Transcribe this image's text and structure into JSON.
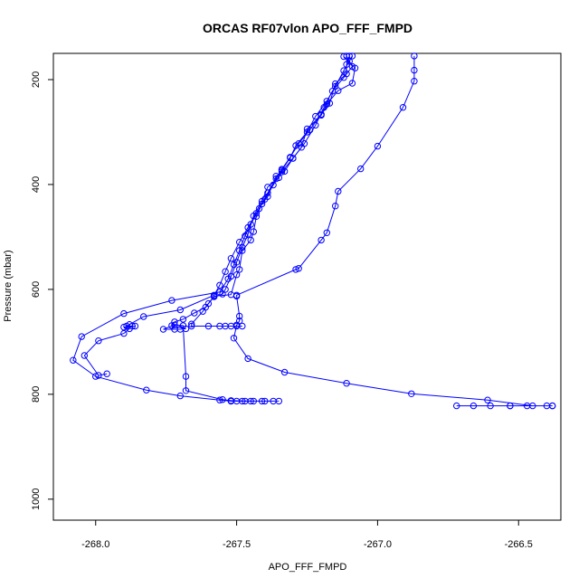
{
  "chart_data": {
    "type": "line",
    "title": "ORCAS RF07vlon APO_FFF_FMPD",
    "xlabel": "APO_FFF_FMPD",
    "ylabel": "Pressure (mbar)",
    "xlim": [
      -268.15,
      -266.35
    ],
    "ylim": [
      1040,
      150
    ],
    "y_reversed": true,
    "grid": false,
    "x_ticks": [
      -268.0,
      -267.5,
      -267.0,
      -266.5
    ],
    "x_tick_labels": [
      "-268.0",
      "-267.5",
      "-267.0",
      "-266.5"
    ],
    "y_ticks": [
      200,
      400,
      600,
      800,
      1000
    ],
    "y_tick_labels": [
      "200",
      "400",
      "600",
      "800",
      "1000"
    ],
    "series_color": "#0000ff",
    "marker": "open-circle",
    "series": [
      {
        "points": [
          [
            -266.87,
            155
          ],
          [
            -266.87,
            182
          ],
          [
            -266.87,
            203
          ],
          [
            -266.91,
            253
          ],
          [
            -267.0,
            327
          ],
          [
            -267.06,
            370
          ],
          [
            -267.14,
            413
          ],
          [
            -267.15,
            441
          ],
          [
            -267.18,
            492
          ],
          [
            -267.2,
            506
          ],
          [
            -267.28,
            560
          ],
          [
            -267.29,
            562
          ],
          [
            -267.5,
            611
          ],
          [
            -267.5,
            613
          ],
          [
            -267.49,
            651
          ],
          [
            -267.49,
            660
          ],
          [
            -267.5,
            668
          ],
          [
            -267.51,
            693
          ],
          [
            -267.46,
            732
          ],
          [
            -267.33,
            758
          ],
          [
            -267.11,
            779
          ],
          [
            -266.88,
            799
          ],
          [
            -266.61,
            811
          ],
          [
            -266.45,
            822
          ],
          [
            -266.38,
            822
          ],
          [
            -266.4,
            822
          ],
          [
            -266.47,
            822
          ],
          [
            -266.53,
            822
          ],
          [
            -266.6,
            822
          ],
          [
            -266.66,
            822
          ],
          [
            -266.72,
            822
          ],
          [
            -266.53,
            822
          ],
          [
            -266.38,
            822
          ]
        ]
      },
      {
        "points": [
          [
            -267.12,
            156
          ],
          [
            -267.08,
            178
          ],
          [
            -267.09,
            207
          ],
          [
            -267.14,
            221
          ],
          [
            -267.18,
            247
          ],
          [
            -267.2,
            268
          ],
          [
            -267.25,
            294
          ],
          [
            -267.27,
            329
          ],
          [
            -267.3,
            350
          ],
          [
            -267.33,
            375
          ],
          [
            -267.36,
            384
          ],
          [
            -267.39,
            423
          ],
          [
            -267.41,
            437
          ],
          [
            -267.43,
            461
          ],
          [
            -267.44,
            490
          ],
          [
            -267.45,
            506
          ],
          [
            -267.48,
            526
          ],
          [
            -267.49,
            562
          ],
          [
            -267.5,
            572
          ],
          [
            -267.52,
            610
          ],
          [
            -267.58,
            613
          ],
          [
            -267.61,
            634
          ],
          [
            -267.65,
            645
          ],
          [
            -267.69,
            657
          ],
          [
            -267.72,
            662
          ],
          [
            -267.73,
            669
          ],
          [
            -267.68,
            675
          ],
          [
            -267.7,
            676
          ],
          [
            -267.72,
            676
          ],
          [
            -267.76,
            676
          ],
          [
            -267.72,
            668
          ],
          [
            -267.69,
            669
          ],
          [
            -267.68,
            766
          ],
          [
            -267.68,
            793
          ],
          [
            -267.55,
            810
          ],
          [
            -267.52,
            812
          ],
          [
            -267.47,
            813
          ],
          [
            -267.41,
            813
          ],
          [
            -267.35,
            813
          ],
          [
            -267.37,
            813
          ],
          [
            -267.4,
            813
          ],
          [
            -267.45,
            813
          ],
          [
            -267.5,
            813
          ],
          [
            -267.52,
            813
          ]
        ]
      },
      {
        "points": [
          [
            -267.1,
            155
          ],
          [
            -267.11,
            171
          ],
          [
            -267.11,
            189
          ],
          [
            -267.15,
            208
          ],
          [
            -267.17,
            245
          ],
          [
            -267.2,
            266
          ],
          [
            -267.24,
            296
          ],
          [
            -267.28,
            322
          ],
          [
            -267.31,
            348
          ],
          [
            -267.34,
            371
          ],
          [
            -267.36,
            389
          ],
          [
            -267.39,
            416
          ],
          [
            -267.42,
            446
          ],
          [
            -267.45,
            476
          ],
          [
            -267.47,
            498
          ],
          [
            -267.49,
            526
          ],
          [
            -267.51,
            553
          ],
          [
            -267.53,
            580
          ],
          [
            -267.56,
            605
          ],
          [
            -267.73,
            621
          ],
          [
            -267.9,
            646
          ],
          [
            -268.05,
            690
          ],
          [
            -268.08,
            735
          ],
          [
            -268.0,
            766
          ],
          [
            -267.82,
            792
          ],
          [
            -267.7,
            803
          ],
          [
            -267.56,
            811
          ],
          [
            -267.52,
            813
          ],
          [
            -267.48,
            813
          ],
          [
            -267.44,
            813
          ]
        ]
      },
      {
        "points": [
          [
            -267.11,
            155
          ],
          [
            -267.09,
            175
          ],
          [
            -267.12,
            196
          ],
          [
            -267.16,
            222
          ],
          [
            -267.19,
            253
          ],
          [
            -267.22,
            287
          ],
          [
            -267.26,
            322
          ],
          [
            -267.3,
            350
          ],
          [
            -267.34,
            376
          ],
          [
            -267.37,
            401
          ],
          [
            -267.4,
            428
          ],
          [
            -267.43,
            455
          ],
          [
            -267.46,
            482
          ],
          [
            -267.49,
            510
          ],
          [
            -267.52,
            541
          ],
          [
            -267.54,
            566
          ],
          [
            -267.56,
            592
          ],
          [
            -267.58,
            611
          ],
          [
            -267.7,
            639
          ],
          [
            -267.83,
            652
          ],
          [
            -267.88,
            667
          ],
          [
            -267.89,
            670
          ],
          [
            -267.87,
            670
          ],
          [
            -267.86,
            670
          ],
          [
            -267.9,
            672
          ],
          [
            -267.88,
            675
          ],
          [
            -267.9,
            684
          ],
          [
            -267.99,
            698
          ],
          [
            -268.04,
            726
          ],
          [
            -267.99,
            764
          ],
          [
            -267.96,
            761
          ]
        ]
      },
      {
        "points": [
          [
            -267.09,
            155
          ],
          [
            -267.1,
            165
          ],
          [
            -267.12,
            183
          ],
          [
            -267.15,
            213
          ],
          [
            -267.18,
            241
          ],
          [
            -267.22,
            270
          ],
          [
            -267.25,
            300
          ],
          [
            -267.29,
            326
          ],
          [
            -267.31,
            349
          ],
          [
            -267.34,
            373
          ],
          [
            -267.35,
            387
          ],
          [
            -267.39,
            405
          ],
          [
            -267.41,
            432
          ],
          [
            -267.44,
            460
          ],
          [
            -267.46,
            495
          ],
          [
            -267.48,
            520
          ],
          [
            -267.5,
            548
          ],
          [
            -267.52,
            575
          ],
          [
            -267.54,
            600
          ],
          [
            -267.55,
            609
          ],
          [
            -267.58,
            614
          ],
          [
            -267.6,
            627
          ],
          [
            -267.62,
            642
          ],
          [
            -267.66,
            666
          ],
          [
            -267.66,
            670
          ],
          [
            -267.6,
            670
          ],
          [
            -267.56,
            670
          ],
          [
            -267.54,
            670
          ],
          [
            -267.52,
            670
          ],
          [
            -267.5,
            670
          ],
          [
            -267.48,
            670
          ]
        ]
      }
    ]
  }
}
